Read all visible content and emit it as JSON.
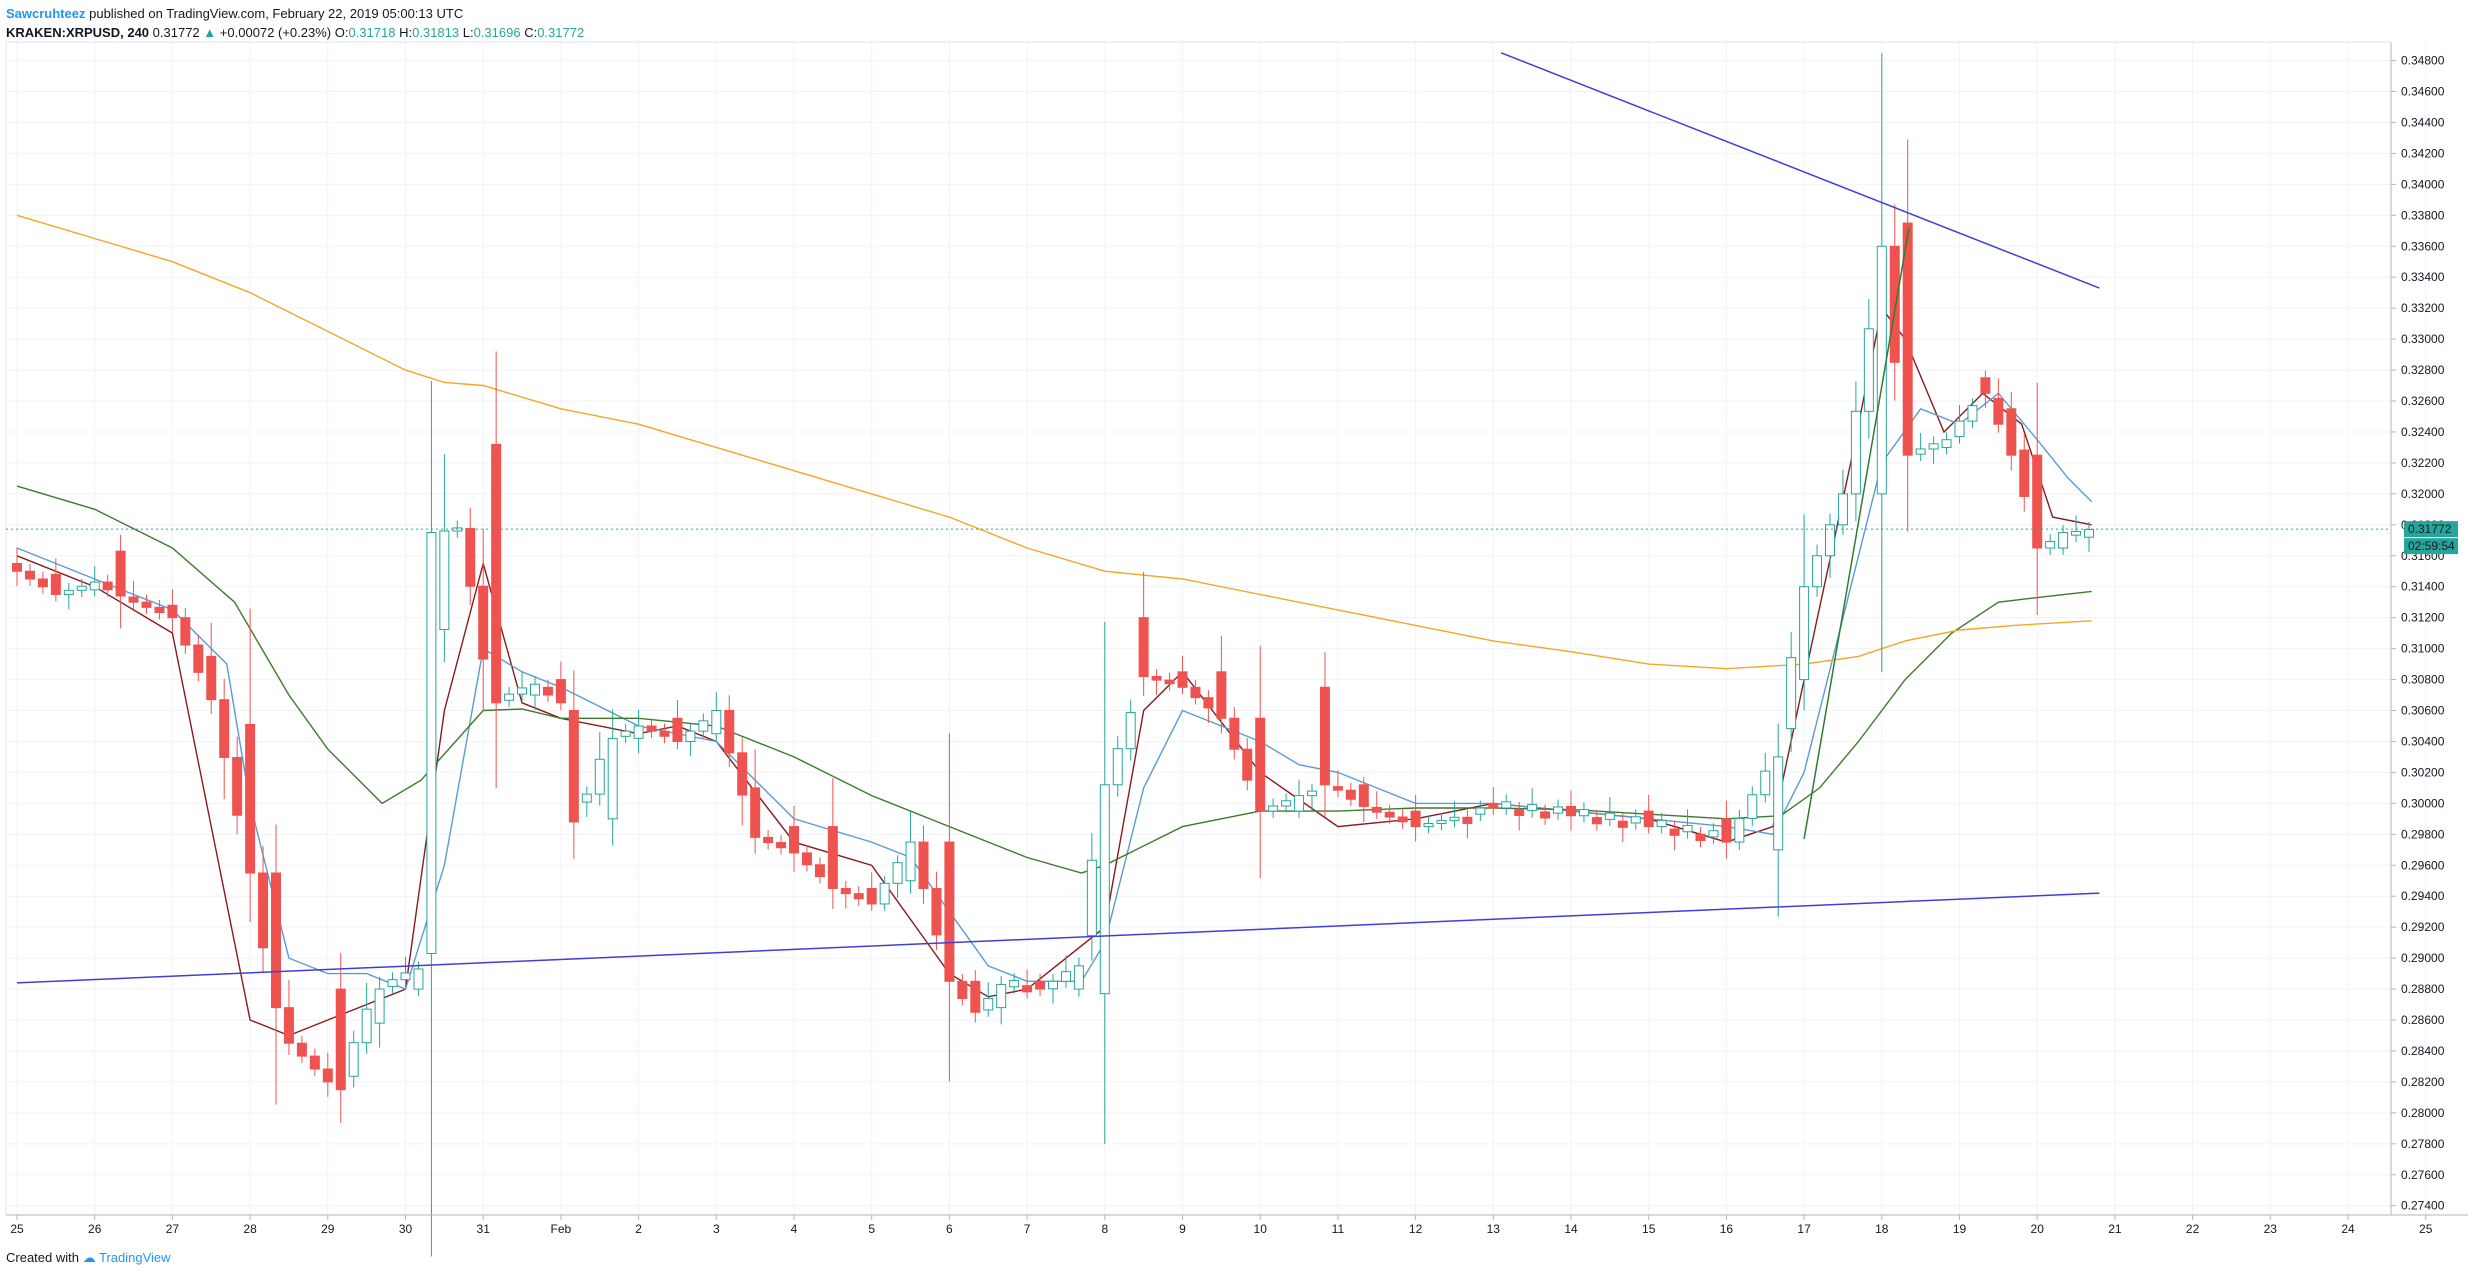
{
  "header": {
    "author": "Sawcruhteez",
    "published_text": "published on TradingView.com, February 22, 2019 05:00:13 UTC",
    "symbol": "KRAKEN:XRPUSD, 240",
    "last": "0.31772",
    "change": "+0.00072 (+0.23%)",
    "o_label": "O:",
    "o": "0.31718",
    "h_label": "H:",
    "h": "0.31813",
    "l_label": "L:",
    "l": "0.31696",
    "c_label": "C:",
    "c": "0.31772"
  },
  "footer": {
    "created_with": "Created with",
    "brand": "TradingView"
  },
  "price_label": "0.31772",
  "countdown_label": "02:59:54",
  "colors": {
    "up": "#26a69a",
    "down": "#ef5350",
    "ema_short": "#8b1a1a",
    "ema_mid": "#5b9bd5",
    "ema_long": "#3d7a2a",
    "ma_long": "#f5a623",
    "trendline": "#3f3fd8",
    "up_trend": "#2e7d32"
  },
  "chart_data": {
    "type": "candlestick",
    "timeframe": "240",
    "x_ticks": [
      "25",
      "26",
      "27",
      "28",
      "29",
      "30",
      "31",
      "Feb",
      "2",
      "3",
      "4",
      "5",
      "6",
      "7",
      "8",
      "9",
      "10",
      "11",
      "12",
      "13",
      "14",
      "15",
      "16",
      "17",
      "18",
      "19",
      "20",
      "21",
      "22",
      "23",
      "24",
      "25"
    ],
    "y_ticks": [
      "0.34800",
      "0.34600",
      "0.34400",
      "0.34200",
      "0.34000",
      "0.33800",
      "0.33600",
      "0.33400",
      "0.33200",
      "0.33000",
      "0.32800",
      "0.32600",
      "0.32400",
      "0.32200",
      "0.32000",
      "0.31800",
      "0.31600",
      "0.31400",
      "0.31200",
      "0.31000",
      "0.30800",
      "0.30600",
      "0.30400",
      "0.30200",
      "0.30000",
      "0.29800",
      "0.29600",
      "0.29400",
      "0.29200",
      "0.29000",
      "0.28800",
      "0.28600",
      "0.28400",
      "0.28200",
      "0.28000",
      "0.27800",
      "0.27600",
      "0.27400"
    ],
    "ylim": [
      0.2734,
      0.3492
    ],
    "xlim_days": [
      0,
      30.2
    ],
    "key_candles": [
      {
        "day": 0.0,
        "o": 0.3155,
        "c": 0.315
      },
      {
        "day": 0.5,
        "o": 0.3148,
        "c": 0.3135
      },
      {
        "day": 1.0,
        "o": 0.3138,
        "c": 0.3143
      },
      {
        "day": 1.3,
        "o": 0.3163,
        "c": 0.3134
      },
      {
        "day": 2.0,
        "o": 0.3128,
        "c": 0.312
      },
      {
        "day": 2.5,
        "o": 0.3095,
        "c": 0.3067
      },
      {
        "day": 3.0,
        "o": 0.3051,
        "c": 0.2955
      },
      {
        "day": 3.3,
        "o": 0.2955,
        "c": 0.2868
      },
      {
        "day": 3.5,
        "o": 0.2868,
        "c": 0.2845
      },
      {
        "day": 4.1,
        "o": 0.288,
        "c": 0.2815
      },
      {
        "day": 4.6,
        "o": 0.2858,
        "c": 0.288
      },
      {
        "day": 5.1,
        "o": 0.288,
        "c": 0.2893
      },
      {
        "day": 5.4,
        "o": 0.2903,
        "c": 0.3175
      },
      {
        "day": 5.7,
        "o": 0.3176,
        "c": 0.3178
      },
      {
        "day": 6.1,
        "o": 0.3232,
        "c": 0.3065
      },
      {
        "day": 6.6,
        "o": 0.307,
        "c": 0.3077
      },
      {
        "day": 7.0,
        "o": 0.308,
        "c": 0.3065
      },
      {
        "day": 7.2,
        "o": 0.306,
        "c": 0.2988
      },
      {
        "day": 7.6,
        "o": 0.299,
        "c": 0.3042
      },
      {
        "day": 8.0,
        "o": 0.3042,
        "c": 0.305
      },
      {
        "day": 8.5,
        "o": 0.3055,
        "c": 0.304
      },
      {
        "day": 9.0,
        "o": 0.3045,
        "c": 0.306
      },
      {
        "day": 9.5,
        "o": 0.301,
        "c": 0.2978
      },
      {
        "day": 10.0,
        "o": 0.2985,
        "c": 0.2968
      },
      {
        "day": 10.5,
        "o": 0.2985,
        "c": 0.2945
      },
      {
        "day": 11.0,
        "o": 0.2945,
        "c": 0.2935
      },
      {
        "day": 11.5,
        "o": 0.295,
        "c": 0.2975
      },
      {
        "day": 12.0,
        "o": 0.2975,
        "c": 0.2885
      },
      {
        "day": 12.3,
        "o": 0.2885,
        "c": 0.2865
      },
      {
        "day": 12.7,
        "o": 0.2868,
        "c": 0.2883
      },
      {
        "day": 13.2,
        "o": 0.2885,
        "c": 0.288
      },
      {
        "day": 13.6,
        "o": 0.288,
        "c": 0.2895
      },
      {
        "day": 14.0,
        "o": 0.2877,
        "c": 0.3012
      },
      {
        "day": 14.5,
        "o": 0.312,
        "c": 0.3082
      },
      {
        "day": 15.0,
        "o": 0.3085,
        "c": 0.3075
      },
      {
        "day": 15.5,
        "o": 0.3085,
        "c": 0.3055
      },
      {
        "day": 16.0,
        "o": 0.3055,
        "c": 0.2995
      },
      {
        "day": 16.5,
        "o": 0.2995,
        "c": 0.3005
      },
      {
        "day": 16.9,
        "o": 0.3075,
        "c": 0.3012
      },
      {
        "day": 17.3,
        "o": 0.3012,
        "c": 0.2998
      },
      {
        "day": 18.0,
        "o": 0.2995,
        "c": 0.2985
      },
      {
        "day": 19.0,
        "o": 0.3,
        "c": 0.2997
      },
      {
        "day": 20.0,
        "o": 0.2998,
        "c": 0.2992
      },
      {
        "day": 21.0,
        "o": 0.2995,
        "c": 0.2985
      },
      {
        "day": 22.0,
        "o": 0.299,
        "c": 0.2975
      },
      {
        "day": 22.6,
        "o": 0.297,
        "c": 0.303
      },
      {
        "day": 23.0,
        "o": 0.308,
        "c": 0.314
      },
      {
        "day": 23.5,
        "o": 0.318,
        "c": 0.32
      },
      {
        "day": 24.0,
        "o": 0.32,
        "c": 0.336
      },
      {
        "day": 24.3,
        "o": 0.3375,
        "c": 0.3225
      },
      {
        "day": 24.8,
        "o": 0.323,
        "c": 0.3235
      },
      {
        "day": 25.3,
        "o": 0.3275,
        "c": 0.3265
      },
      {
        "day": 25.7,
        "o": 0.3255,
        "c": 0.3225
      },
      {
        "day": 26.0,
        "o": 0.3225,
        "c": 0.3165
      },
      {
        "day": 26.4,
        "o": 0.3165,
        "c": 0.3175
      },
      {
        "day": 26.7,
        "o": 0.3172,
        "c": 0.3177
      }
    ],
    "series": [
      {
        "type": "line",
        "points": [
          [
            0,
            0.316
          ],
          [
            1,
            0.314
          ],
          [
            2,
            0.311
          ],
          [
            3,
            0.286
          ],
          [
            3.5,
            0.285
          ],
          [
            4,
            0.286
          ],
          [
            4.5,
            0.287
          ],
          [
            5,
            0.288
          ],
          [
            5.5,
            0.306
          ],
          [
            6,
            0.3155
          ],
          [
            6.5,
            0.3065
          ],
          [
            7,
            0.3055
          ],
          [
            8,
            0.3045
          ],
          [
            8.5,
            0.305
          ],
          [
            9,
            0.304
          ],
          [
            10,
            0.2975
          ],
          [
            11,
            0.296
          ],
          [
            12,
            0.289
          ],
          [
            12.5,
            0.2875
          ],
          [
            13,
            0.288
          ],
          [
            14,
            0.292
          ],
          [
            14.5,
            0.306
          ],
          [
            15,
            0.3085
          ],
          [
            16,
            0.302
          ],
          [
            17,
            0.2985
          ],
          [
            18,
            0.299
          ],
          [
            19,
            0.3
          ],
          [
            20,
            0.2995
          ],
          [
            21,
            0.299
          ],
          [
            22,
            0.2975
          ],
          [
            22.6,
            0.2985
          ],
          [
            23,
            0.308
          ],
          [
            23.6,
            0.322
          ],
          [
            24,
            0.332
          ],
          [
            24.3,
            0.33
          ],
          [
            24.8,
            0.324
          ],
          [
            25.3,
            0.3265
          ],
          [
            25.8,
            0.3245
          ],
          [
            26.2,
            0.3185
          ],
          [
            26.7,
            0.318
          ]
        ]
      },
      {
        "type": "line",
        "points": [
          [
            0,
            0.3165
          ],
          [
            1,
            0.3145
          ],
          [
            2,
            0.3125
          ],
          [
            2.7,
            0.309
          ],
          [
            3,
            0.3
          ],
          [
            3.5,
            0.29
          ],
          [
            4,
            0.289
          ],
          [
            4.5,
            0.289
          ],
          [
            5,
            0.288
          ],
          [
            5.5,
            0.296
          ],
          [
            6,
            0.31
          ],
          [
            6.5,
            0.3085
          ],
          [
            7,
            0.3075
          ],
          [
            8,
            0.305
          ],
          [
            9,
            0.304
          ],
          [
            10,
            0.299
          ],
          [
            11,
            0.2975
          ],
          [
            11.5,
            0.2965
          ],
          [
            12,
            0.293
          ],
          [
            12.5,
            0.2895
          ],
          [
            13,
            0.2885
          ],
          [
            13.7,
            0.2885
          ],
          [
            14,
            0.291
          ],
          [
            14.5,
            0.301
          ],
          [
            15,
            0.306
          ],
          [
            16,
            0.304
          ],
          [
            16.5,
            0.3025
          ],
          [
            17,
            0.302
          ],
          [
            18,
            0.3
          ],
          [
            19,
            0.3
          ],
          [
            20,
            0.2995
          ],
          [
            21,
            0.299
          ],
          [
            22,
            0.2985
          ],
          [
            22.6,
            0.298
          ],
          [
            23,
            0.302
          ],
          [
            23.5,
            0.312
          ],
          [
            24,
            0.322
          ],
          [
            24.5,
            0.3255
          ],
          [
            25,
            0.3245
          ],
          [
            25.5,
            0.3265
          ],
          [
            26,
            0.3235
          ],
          [
            26.4,
            0.321
          ],
          [
            26.7,
            0.3195
          ]
        ]
      },
      {
        "type": "line",
        "points": [
          [
            0,
            0.3205
          ],
          [
            1,
            0.319
          ],
          [
            2,
            0.3165
          ],
          [
            2.8,
            0.313
          ],
          [
            3.5,
            0.307
          ],
          [
            4,
            0.3035
          ],
          [
            4.7,
            0.3
          ],
          [
            5.2,
            0.3015
          ],
          [
            6,
            0.306
          ],
          [
            6.5,
            0.3061
          ],
          [
            7,
            0.3055
          ],
          [
            8,
            0.3055
          ],
          [
            9,
            0.305
          ],
          [
            10,
            0.303
          ],
          [
            11,
            0.3005
          ],
          [
            12,
            0.2985
          ],
          [
            13,
            0.2965
          ],
          [
            13.7,
            0.2955
          ],
          [
            14,
            0.296
          ],
          [
            15,
            0.2985
          ],
          [
            16,
            0.2995
          ],
          [
            17,
            0.2995
          ],
          [
            18,
            0.2997
          ],
          [
            19,
            0.2997
          ],
          [
            20,
            0.2996
          ],
          [
            21,
            0.2993
          ],
          [
            22,
            0.299
          ],
          [
            22.7,
            0.2992
          ],
          [
            23.2,
            0.301
          ],
          [
            23.7,
            0.304
          ],
          [
            24.3,
            0.308
          ],
          [
            24.9,
            0.311
          ],
          [
            25.5,
            0.313
          ],
          [
            26,
            0.3133
          ],
          [
            26.7,
            0.3137
          ]
        ]
      },
      {
        "type": "line",
        "points": [
          [
            0,
            0.338
          ],
          [
            1,
            0.3365
          ],
          [
            2,
            0.335
          ],
          [
            3,
            0.333
          ],
          [
            4,
            0.3305
          ],
          [
            5,
            0.328
          ],
          [
            5.5,
            0.3272
          ],
          [
            6,
            0.327
          ],
          [
            7,
            0.3255
          ],
          [
            8,
            0.3245
          ],
          [
            9,
            0.323
          ],
          [
            10,
            0.3215
          ],
          [
            11,
            0.32
          ],
          [
            12,
            0.3185
          ],
          [
            13,
            0.3165
          ],
          [
            14,
            0.315
          ],
          [
            15,
            0.3145
          ],
          [
            16,
            0.3135
          ],
          [
            17,
            0.3125
          ],
          [
            18,
            0.3115
          ],
          [
            19,
            0.3105
          ],
          [
            20,
            0.3098
          ],
          [
            21,
            0.309
          ],
          [
            22,
            0.3087
          ],
          [
            23,
            0.309
          ],
          [
            23.7,
            0.3095
          ],
          [
            24.3,
            0.3105
          ],
          [
            25,
            0.3112
          ],
          [
            25.7,
            0.3115
          ],
          [
            26.7,
            0.3118
          ]
        ]
      },
      {
        "type": "trendline",
        "points": [
          [
            0,
            0.2884
          ],
          [
            26.8,
            0.2942
          ]
        ]
      },
      {
        "type": "trendline",
        "points": [
          [
            19.1,
            0.3485
          ],
          [
            26.8,
            0.3333
          ]
        ]
      },
      {
        "type": "trendline",
        "points": [
          [
            23.0,
            0.2977
          ],
          [
            24.35,
            0.3372
          ]
        ]
      }
    ]
  }
}
